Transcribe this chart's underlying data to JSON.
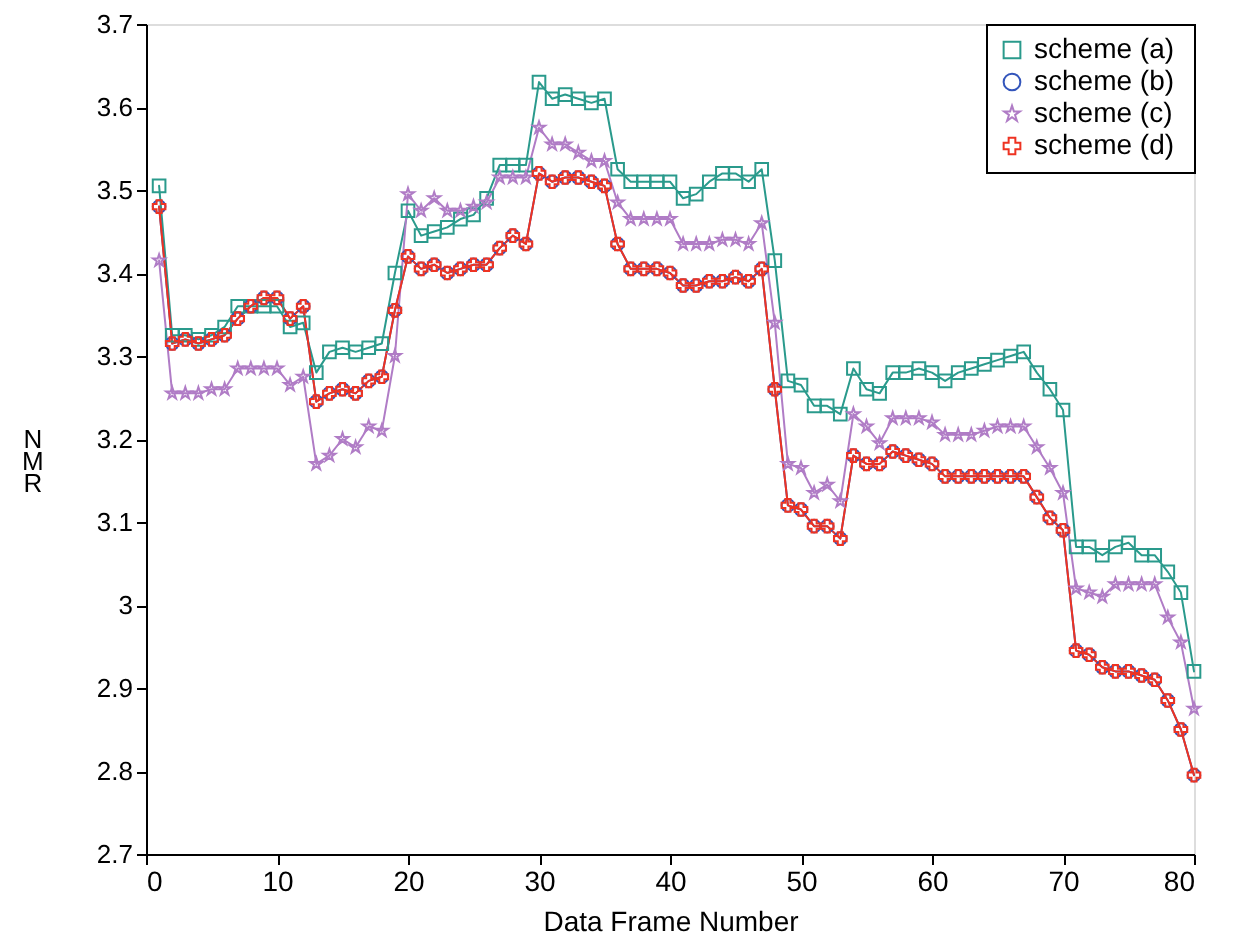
{
  "chart_data": {
    "type": "line",
    "xlabel": "Data Frame Number",
    "ylabel": "NMR",
    "x": [
      1,
      2,
      3,
      4,
      5,
      6,
      7,
      8,
      9,
      10,
      11,
      12,
      13,
      14,
      15,
      16,
      17,
      18,
      19,
      20,
      21,
      22,
      23,
      24,
      25,
      26,
      27,
      28,
      29,
      30,
      31,
      32,
      33,
      34,
      35,
      36,
      37,
      38,
      39,
      40,
      41,
      42,
      43,
      44,
      45,
      46,
      47,
      48,
      49,
      50,
      51,
      52,
      53,
      54,
      55,
      56,
      57,
      58,
      59,
      60,
      61,
      62,
      63,
      64,
      65,
      66,
      67,
      68,
      69,
      70,
      71,
      72,
      73,
      74,
      75,
      76,
      77,
      78,
      79,
      80
    ],
    "xlim": [
      0,
      80
    ],
    "xticks": [
      0,
      10,
      20,
      30,
      40,
      50,
      60,
      70,
      80
    ],
    "ylim": [
      2.7,
      3.7
    ],
    "yticks": [
      2.7,
      2.8,
      2.9,
      3,
      3.1,
      3.2,
      3.3,
      3.4,
      3.5,
      3.6,
      3.7
    ],
    "grid": false,
    "legend": "top right",
    "series": [
      {
        "name": "scheme  (a)",
        "color": "#2a9a8c",
        "marker": "square",
        "values": [
          3.505,
          3.325,
          3.325,
          3.32,
          3.325,
          3.335,
          3.36,
          3.36,
          3.36,
          3.36,
          3.335,
          3.34,
          3.28,
          3.305,
          3.31,
          3.305,
          3.31,
          3.315,
          3.4,
          3.475,
          3.445,
          3.45,
          3.455,
          3.465,
          3.47,
          3.49,
          3.53,
          3.53,
          3.53,
          3.63,
          3.61,
          3.615,
          3.61,
          3.605,
          3.61,
          3.525,
          3.51,
          3.51,
          3.51,
          3.51,
          3.49,
          3.495,
          3.51,
          3.52,
          3.52,
          3.51,
          3.525,
          3.415,
          3.27,
          3.265,
          3.24,
          3.24,
          3.23,
          3.285,
          3.26,
          3.255,
          3.28,
          3.28,
          3.285,
          3.28,
          3.27,
          3.28,
          3.285,
          3.29,
          3.295,
          3.3,
          3.305,
          3.28,
          3.26,
          3.235,
          3.07,
          3.07,
          3.06,
          3.07,
          3.075,
          3.06,
          3.06,
          3.04,
          3.015,
          2.92
        ]
      },
      {
        "name": "scheme  (b)",
        "color": "#3355bb",
        "marker": "circle",
        "values": [
          3.48,
          3.315,
          3.32,
          3.315,
          3.32,
          3.325,
          3.345,
          3.36,
          3.37,
          3.37,
          3.345,
          3.36,
          3.245,
          3.255,
          3.26,
          3.255,
          3.27,
          3.275,
          3.355,
          3.42,
          3.405,
          3.41,
          3.4,
          3.405,
          3.41,
          3.41,
          3.43,
          3.445,
          3.435,
          3.52,
          3.51,
          3.515,
          3.515,
          3.51,
          3.505,
          3.435,
          3.405,
          3.405,
          3.405,
          3.4,
          3.385,
          3.385,
          3.39,
          3.39,
          3.395,
          3.39,
          3.405,
          3.26,
          3.12,
          3.115,
          3.095,
          3.095,
          3.08,
          3.18,
          3.17,
          3.17,
          3.185,
          3.18,
          3.175,
          3.17,
          3.155,
          3.155,
          3.155,
          3.155,
          3.155,
          3.155,
          3.155,
          3.13,
          3.105,
          3.09,
          2.945,
          2.94,
          2.925,
          2.92,
          2.92,
          2.915,
          2.91,
          2.885,
          2.85,
          2.795
        ]
      },
      {
        "name": "scheme  (c)",
        "color": "#b07cc6",
        "marker": "star",
        "values": [
          3.415,
          3.255,
          3.255,
          3.255,
          3.26,
          3.26,
          3.285,
          3.285,
          3.285,
          3.285,
          3.265,
          3.275,
          3.17,
          3.18,
          3.2,
          3.19,
          3.215,
          3.21,
          3.3,
          3.495,
          3.475,
          3.49,
          3.475,
          3.475,
          3.48,
          3.485,
          3.515,
          3.515,
          3.515,
          3.575,
          3.555,
          3.555,
          3.545,
          3.535,
          3.535,
          3.485,
          3.465,
          3.465,
          3.465,
          3.465,
          3.435,
          3.435,
          3.435,
          3.44,
          3.44,
          3.435,
          3.46,
          3.34,
          3.17,
          3.165,
          3.135,
          3.145,
          3.125,
          3.23,
          3.215,
          3.195,
          3.225,
          3.225,
          3.225,
          3.22,
          3.205,
          3.205,
          3.205,
          3.21,
          3.215,
          3.215,
          3.215,
          3.19,
          3.165,
          3.135,
          3.02,
          3.015,
          3.01,
          3.025,
          3.025,
          3.025,
          3.025,
          2.985,
          2.955,
          2.875
        ]
      },
      {
        "name": "scheme  (d)",
        "color": "#ee3322",
        "marker": "cross",
        "values": [
          3.48,
          3.315,
          3.32,
          3.315,
          3.32,
          3.325,
          3.345,
          3.36,
          3.37,
          3.37,
          3.345,
          3.36,
          3.245,
          3.255,
          3.26,
          3.255,
          3.27,
          3.275,
          3.355,
          3.42,
          3.405,
          3.41,
          3.4,
          3.405,
          3.41,
          3.41,
          3.43,
          3.445,
          3.435,
          3.52,
          3.51,
          3.515,
          3.515,
          3.51,
          3.505,
          3.435,
          3.405,
          3.405,
          3.405,
          3.4,
          3.385,
          3.385,
          3.39,
          3.39,
          3.395,
          3.39,
          3.405,
          3.26,
          3.12,
          3.115,
          3.095,
          3.095,
          3.08,
          3.18,
          3.17,
          3.17,
          3.185,
          3.18,
          3.175,
          3.17,
          3.155,
          3.155,
          3.155,
          3.155,
          3.155,
          3.155,
          3.155,
          3.13,
          3.105,
          3.09,
          2.945,
          2.94,
          2.925,
          2.92,
          2.92,
          2.915,
          2.91,
          2.885,
          2.85,
          2.795
        ]
      }
    ]
  }
}
